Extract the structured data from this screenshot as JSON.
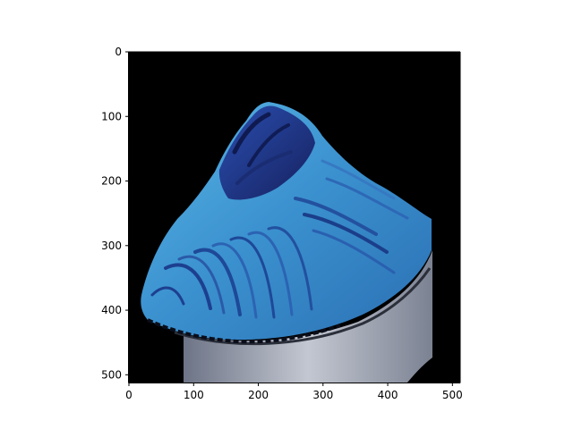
{
  "figure": {
    "background": "#ffffff",
    "image_background": "#000000",
    "subject": "blue-frosted-cupcake",
    "colors": {
      "frosting_light": "#4aa6d8",
      "frosting_mid": "#2f7fc0",
      "frosting_dark": "#1b2f7a",
      "liner": "#8f97a6"
    },
    "x_axis": {
      "range": [
        0,
        512
      ],
      "ticks": [
        {
          "value": 0,
          "label": "0"
        },
        {
          "value": 100,
          "label": "100"
        },
        {
          "value": 200,
          "label": "200"
        },
        {
          "value": 300,
          "label": "300"
        },
        {
          "value": 400,
          "label": "400"
        },
        {
          "value": 500,
          "label": "500"
        }
      ]
    },
    "y_axis": {
      "range": [
        0,
        512
      ],
      "inverted": true,
      "ticks": [
        {
          "value": 0,
          "label": "0"
        },
        {
          "value": 100,
          "label": "100"
        },
        {
          "value": 200,
          "label": "200"
        },
        {
          "value": 300,
          "label": "300"
        },
        {
          "value": 400,
          "label": "400"
        },
        {
          "value": 500,
          "label": "500"
        }
      ]
    }
  }
}
